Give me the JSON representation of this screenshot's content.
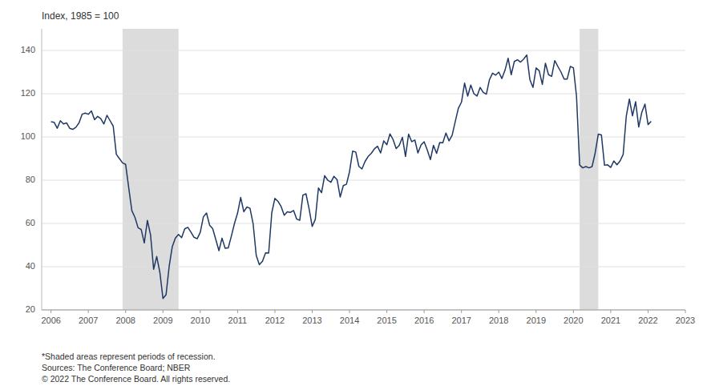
{
  "chart_data": {
    "type": "line",
    "title": "Index, 1985 = 100",
    "color": "#1f3864",
    "grid": true,
    "xlim": [
      2005.75,
      2023.0
    ],
    "ylim": [
      20,
      150
    ],
    "yticks": [
      20,
      40,
      60,
      80,
      100,
      120,
      140
    ],
    "xticks": [
      2006,
      2007,
      2008,
      2009,
      2010,
      2011,
      2012,
      2013,
      2014,
      2015,
      2016,
      2017,
      2018,
      2019,
      2020,
      2021,
      2022,
      2023
    ],
    "recessions": [
      [
        2007.917,
        2009.417
      ],
      [
        2020.167,
        2020.667
      ]
    ],
    "annotations": [
      "*Shaded areas represent periods of recession.",
      "Sources: The Conference Board; NBER",
      "© 2022 The Conference Board. All rights reserved."
    ],
    "x": [
      2006.0,
      2006.083,
      2006.167,
      2006.25,
      2006.333,
      2006.417,
      2006.5,
      2006.583,
      2006.667,
      2006.75,
      2006.833,
      2006.917,
      2007.0,
      2007.083,
      2007.167,
      2007.25,
      2007.333,
      2007.417,
      2007.5,
      2007.583,
      2007.667,
      2007.75,
      2007.833,
      2007.917,
      2008.0,
      2008.083,
      2008.167,
      2008.25,
      2008.333,
      2008.417,
      2008.5,
      2008.583,
      2008.667,
      2008.75,
      2008.833,
      2008.917,
      2009.0,
      2009.083,
      2009.167,
      2009.25,
      2009.333,
      2009.417,
      2009.5,
      2009.583,
      2009.667,
      2009.75,
      2009.833,
      2009.917,
      2010.0,
      2010.083,
      2010.167,
      2010.25,
      2010.333,
      2010.417,
      2010.5,
      2010.583,
      2010.667,
      2010.75,
      2010.833,
      2010.917,
      2011.0,
      2011.083,
      2011.167,
      2011.25,
      2011.333,
      2011.417,
      2011.5,
      2011.583,
      2011.667,
      2011.75,
      2011.833,
      2011.917,
      2012.0,
      2012.083,
      2012.167,
      2012.25,
      2012.333,
      2012.417,
      2012.5,
      2012.583,
      2012.667,
      2012.75,
      2012.833,
      2012.917,
      2013.0,
      2013.083,
      2013.167,
      2013.25,
      2013.333,
      2013.417,
      2013.5,
      2013.583,
      2013.667,
      2013.75,
      2013.833,
      2013.917,
      2014.0,
      2014.083,
      2014.167,
      2014.25,
      2014.333,
      2014.417,
      2014.5,
      2014.583,
      2014.667,
      2014.75,
      2014.833,
      2014.917,
      2015.0,
      2015.083,
      2015.167,
      2015.25,
      2015.333,
      2015.417,
      2015.5,
      2015.583,
      2015.667,
      2015.75,
      2015.833,
      2015.917,
      2016.0,
      2016.083,
      2016.167,
      2016.25,
      2016.333,
      2016.417,
      2016.5,
      2016.583,
      2016.667,
      2016.75,
      2016.833,
      2016.917,
      2017.0,
      2017.083,
      2017.167,
      2017.25,
      2017.333,
      2017.417,
      2017.5,
      2017.583,
      2017.667,
      2017.75,
      2017.833,
      2017.917,
      2018.0,
      2018.083,
      2018.167,
      2018.25,
      2018.333,
      2018.417,
      2018.5,
      2018.583,
      2018.667,
      2018.75,
      2018.833,
      2018.917,
      2019.0,
      2019.083,
      2019.167,
      2019.25,
      2019.333,
      2019.417,
      2019.5,
      2019.583,
      2019.667,
      2019.75,
      2019.833,
      2019.917,
      2020.0,
      2020.083,
      2020.167,
      2020.25,
      2020.333,
      2020.417,
      2020.5,
      2020.583,
      2020.667,
      2020.75,
      2020.833,
      2020.917,
      2021.0,
      2021.083,
      2021.167,
      2021.25,
      2021.333,
      2021.417,
      2021.5,
      2021.583,
      2021.667,
      2021.75,
      2021.833,
      2021.917,
      2022.0,
      2022.083
    ],
    "values": [
      107.0,
      106.8,
      104.0,
      107.5,
      106.0,
      106.5,
      104.0,
      103.5,
      104.5,
      106.5,
      110.5,
      111.0,
      110.5,
      112.0,
      108.0,
      109.5,
      108.5,
      106.0,
      110.0,
      107.5,
      105.0,
      92.0,
      90.0,
      88.0,
      87.3,
      76.4,
      65.9,
      62.8,
      58.0,
      57.2,
      51.0,
      61.4,
      54.8,
      38.8,
      44.7,
      37.4,
      25.3,
      27.0,
      40.2,
      49.3,
      53.2,
      54.9,
      53.4,
      57.5,
      58.2,
      56.0,
      53.6,
      52.9,
      55.9,
      63.0,
      64.8,
      59.2,
      57.6,
      52.5,
      47.4,
      53.2,
      48.5,
      48.7,
      54.1,
      60.0,
      64.8,
      72.0,
      65.4,
      67.6,
      67.0,
      59.8,
      45.2,
      40.9,
      42.5,
      46.4,
      46.3,
      65.0,
      71.6,
      70.2,
      67.8,
      63.8,
      65.4,
      65.1,
      66.0,
      62.0,
      61.5,
      73.1,
      73.7,
      66.7,
      58.6,
      61.9,
      76.4,
      74.2,
      82.1,
      80.0,
      79.0,
      81.8,
      80.2,
      72.2,
      77.5,
      78.1,
      83.9,
      93.4,
      93.0,
      86.4,
      85.2,
      88.7,
      91.0,
      92.4,
      94.5,
      95.7,
      92.6,
      98.2,
      96.4,
      101.4,
      98.8,
      94.6,
      96.1,
      99.8,
      91.0,
      101.3,
      97.8,
      98.6,
      92.6,
      96.3,
      97.8,
      94.0,
      89.5,
      96.1,
      92.4,
      97.4,
      97.3,
      101.8,
      98.2,
      100.8,
      107.1,
      113.3,
      116.1,
      124.9,
      118.9,
      124.0,
      120.0,
      118.9,
      122.9,
      120.6,
      119.8,
      126.5,
      129.5,
      128.6,
      130.0,
      127.0,
      130.9,
      136.4,
      128.8,
      134.9,
      135.7,
      134.6,
      136.0,
      137.9,
      126.5,
      122.9,
      131.9,
      130.6,
      124.3,
      134.1,
      128.8,
      128.0,
      135.3,
      132.6,
      130.0,
      126.8,
      126.8,
      132.6,
      132.0,
      118.8,
      87.0,
      85.7,
      86.3,
      85.7,
      86.3,
      92.6,
      101.3,
      100.9,
      86.9,
      87.1,
      85.9,
      88.9,
      87.1,
      88.9,
      91.9,
      109.7,
      117.5,
      109.8,
      116.3,
      104.6,
      111.4,
      115.2,
      105.7,
      107.2
    ]
  }
}
